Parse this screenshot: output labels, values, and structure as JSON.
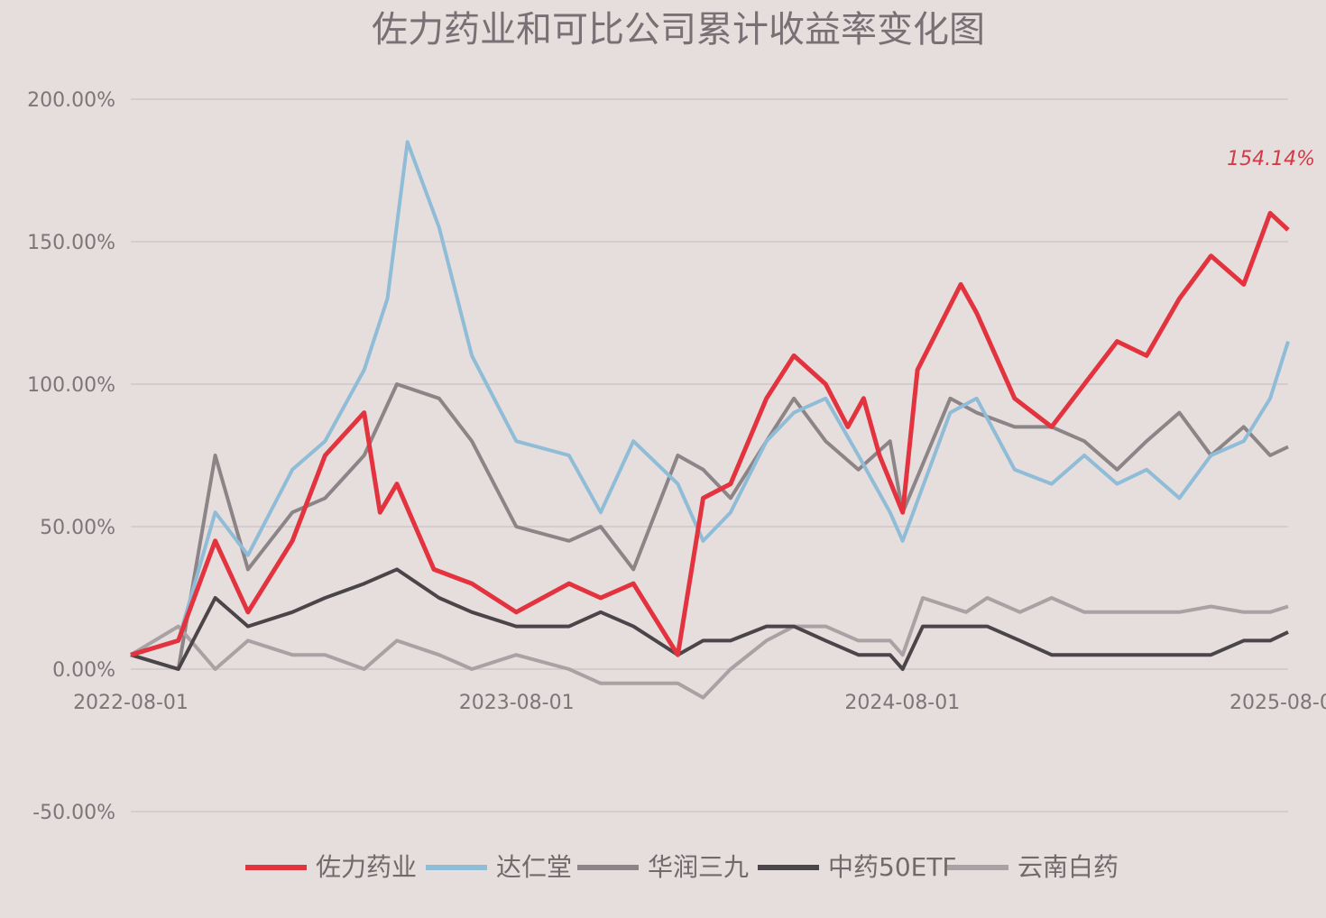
{
  "chart_data": {
    "type": "line",
    "title": "佐力药业和可比公司累计收益率变化图",
    "xlabel": "",
    "ylabel": "",
    "x_ticks": [
      "2022-08-01",
      "2023-08-01",
      "2024-08-01",
      "2025-08-0"
    ],
    "y_ticks": [
      "200.00%",
      "150.00%",
      "100.00%",
      "50.00%",
      "0.00%",
      "-50.00%"
    ],
    "ylim": [
      -50,
      200
    ],
    "xlim": [
      "2022-08-01",
      "2025-08-01"
    ],
    "grid": true,
    "legend_position": "bottom",
    "series": [
      {
        "name": "佐力药业",
        "color": "#e2333f",
        "x": [
          "2022-08-01",
          "2022-09-15",
          "2022-10-20",
          "2022-11-20",
          "2023-01-01",
          "2023-02-01",
          "2023-03-10",
          "2023-03-25",
          "2023-04-10",
          "2023-05-15",
          "2023-06-20",
          "2023-08-01",
          "2023-09-20",
          "2023-10-20",
          "2023-11-20",
          "2024-01-01",
          "2024-01-25",
          "2024-02-20",
          "2024-03-25",
          "2024-04-20",
          "2024-05-20",
          "2024-06-10",
          "2024-06-25",
          "2024-07-10",
          "2024-08-01",
          "2024-08-15",
          "2024-09-25",
          "2024-10-10",
          "2024-11-15",
          "2024-12-20",
          "2025-01-20",
          "2025-02-20",
          "2025-03-20",
          "2025-04-20",
          "2025-05-20",
          "2025-06-20",
          "2025-07-15",
          "2025-08-01"
        ],
        "values": [
          5,
          10,
          45,
          20,
          45,
          75,
          90,
          55,
          65,
          35,
          30,
          20,
          30,
          25,
          30,
          5,
          60,
          65,
          95,
          110,
          100,
          85,
          95,
          75,
          55,
          105,
          135,
          125,
          95,
          85,
          100,
          115,
          110,
          130,
          145,
          135,
          160,
          154.14
        ]
      },
      {
        "name": "达仁堂",
        "color": "#8fbcd6",
        "x": [
          "2022-08-01",
          "2022-09-15",
          "2022-10-20",
          "2022-11-20",
          "2023-01-01",
          "2023-02-01",
          "2023-03-10",
          "2023-04-01",
          "2023-04-20",
          "2023-05-20",
          "2023-06-20",
          "2023-08-01",
          "2023-09-20",
          "2023-10-20",
          "2023-11-20",
          "2024-01-01",
          "2024-01-25",
          "2024-02-20",
          "2024-03-25",
          "2024-04-20",
          "2024-05-20",
          "2024-06-20",
          "2024-07-20",
          "2024-08-01",
          "2024-09-15",
          "2024-10-10",
          "2024-11-15",
          "2024-12-20",
          "2025-01-20",
          "2025-02-20",
          "2025-03-20",
          "2025-04-20",
          "2025-05-20",
          "2025-06-20",
          "2025-07-15",
          "2025-08-01"
        ],
        "values": [
          5,
          10,
          55,
          40,
          70,
          80,
          105,
          130,
          185,
          155,
          110,
          80,
          75,
          55,
          80,
          65,
          45,
          55,
          80,
          90,
          95,
          75,
          55,
          45,
          90,
          95,
          70,
          65,
          75,
          65,
          70,
          60,
          75,
          80,
          95,
          115
        ]
      },
      {
        "name": "华润三九",
        "color": "#8b8588",
        "x": [
          "2022-08-01",
          "2022-09-15",
          "2022-10-20",
          "2022-11-20",
          "2023-01-01",
          "2023-02-01",
          "2023-03-10",
          "2023-04-10",
          "2023-05-20",
          "2023-06-20",
          "2023-08-01",
          "2023-09-20",
          "2023-10-20",
          "2023-11-20",
          "2024-01-01",
          "2024-01-25",
          "2024-02-20",
          "2024-03-25",
          "2024-04-20",
          "2024-05-20",
          "2024-06-20",
          "2024-07-20",
          "2024-08-01",
          "2024-09-15",
          "2024-10-10",
          "2024-11-15",
          "2024-12-20",
          "2025-01-20",
          "2025-02-20",
          "2025-03-20",
          "2025-04-20",
          "2025-05-20",
          "2025-06-20",
          "2025-07-15",
          "2025-08-01"
        ],
        "values": [
          5,
          0,
          75,
          35,
          55,
          60,
          75,
          100,
          95,
          80,
          50,
          45,
          50,
          35,
          75,
          70,
          60,
          80,
          95,
          80,
          70,
          80,
          55,
          95,
          90,
          85,
          85,
          80,
          70,
          80,
          90,
          75,
          85,
          75,
          78
        ]
      },
      {
        "name": "中药50ETF",
        "color": "#4a4548",
        "x": [
          "2022-08-01",
          "2022-09-15",
          "2022-10-20",
          "2022-11-20",
          "2023-01-01",
          "2023-02-01",
          "2023-03-10",
          "2023-04-10",
          "2023-05-20",
          "2023-06-20",
          "2023-08-01",
          "2023-09-20",
          "2023-10-20",
          "2023-11-20",
          "2024-01-01",
          "2024-01-25",
          "2024-02-20",
          "2024-03-25",
          "2024-04-20",
          "2024-05-20",
          "2024-06-20",
          "2024-07-20",
          "2024-08-01",
          "2024-08-20",
          "2024-09-30",
          "2024-10-20",
          "2024-11-20",
          "2024-12-20",
          "2025-01-20",
          "2025-02-20",
          "2025-03-20",
          "2025-04-20",
          "2025-05-20",
          "2025-06-20",
          "2025-07-15",
          "2025-08-01"
        ],
        "values": [
          5,
          0,
          25,
          15,
          20,
          25,
          30,
          35,
          25,
          20,
          15,
          15,
          20,
          15,
          5,
          10,
          10,
          15,
          15,
          10,
          5,
          5,
          0,
          15,
          15,
          15,
          10,
          5,
          5,
          5,
          5,
          5,
          5,
          10,
          10,
          13
        ]
      },
      {
        "name": "云南白药",
        "color": "#a8a2a5",
        "x": [
          "2022-08-01",
          "2022-09-15",
          "2022-10-20",
          "2022-11-20",
          "2023-01-01",
          "2023-02-01",
          "2023-03-10",
          "2023-04-10",
          "2023-05-20",
          "2023-06-20",
          "2023-08-01",
          "2023-09-20",
          "2023-10-20",
          "2023-11-20",
          "2024-01-01",
          "2024-01-25",
          "2024-02-20",
          "2024-03-25",
          "2024-04-20",
          "2024-05-20",
          "2024-06-20",
          "2024-07-20",
          "2024-08-01",
          "2024-08-20",
          "2024-09-30",
          "2024-10-20",
          "2024-11-20",
          "2024-12-20",
          "2025-01-20",
          "2025-02-20",
          "2025-03-20",
          "2025-04-20",
          "2025-05-20",
          "2025-06-20",
          "2025-07-15",
          "2025-08-01"
        ],
        "values": [
          5,
          15,
          0,
          10,
          5,
          5,
          0,
          10,
          5,
          0,
          5,
          0,
          -5,
          -5,
          -5,
          -10,
          0,
          10,
          15,
          15,
          10,
          10,
          5,
          25,
          20,
          25,
          20,
          25,
          20,
          20,
          20,
          20,
          22,
          20,
          20,
          22
        ]
      }
    ],
    "annotations": [
      {
        "text": "154.14%",
        "series": "佐力药业",
        "x": "2025-08-01",
        "y": 154.14,
        "color": "#d23a46"
      }
    ]
  }
}
